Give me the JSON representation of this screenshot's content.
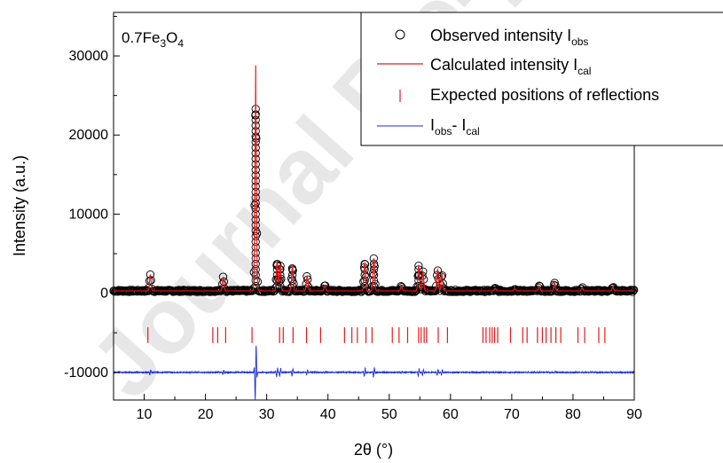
{
  "chart_data": {
    "type": "scatter",
    "sample_label": {
      "base": "0.7Fe",
      "sub1": "3",
      "mid": "O",
      "sub2": "4"
    },
    "xlabel": "2θ (°)",
    "ylabel": "Intensity (a.u.)",
    "xlim": [
      5,
      90
    ],
    "ylim": [
      -13500,
      35500
    ],
    "xticks": [
      10,
      20,
      30,
      40,
      50,
      60,
      70,
      80,
      90
    ],
    "yticks": [
      -10000,
      0,
      10000,
      20000,
      30000
    ],
    "xtick_labels": [
      "10",
      "20",
      "30",
      "40",
      "50",
      "60",
      "70",
      "80",
      "90"
    ],
    "ytick_labels": [
      "-10000",
      "0",
      "10000",
      "20000",
      "30000"
    ],
    "grid": false,
    "legend_placement": "top-right",
    "legend": [
      {
        "key": "obs",
        "text": "Observed intensity I",
        "sub": "obs"
      },
      {
        "key": "cal",
        "text": "Calculated intensity I",
        "sub": "cal"
      },
      {
        "key": "refl",
        "text": "Expected positions of reflections",
        "sub": ""
      },
      {
        "key": "diff",
        "text": "I",
        "sub": "obs",
        "text2": "- I",
        "sub2": "cal"
      }
    ],
    "colors": {
      "obs": "#000000",
      "cal": "#e8191b",
      "refl": "#e8191b",
      "diff": "#1f2fd6"
    },
    "baseline": 300,
    "diff_offset": -10000,
    "peaks": [
      {
        "x": 11.0,
        "y": 2300
      },
      {
        "x": 22.9,
        "y": 2000
      },
      {
        "x": 28.2,
        "y": 23600
      },
      {
        "x": 31.7,
        "y": 4000
      },
      {
        "x": 32.2,
        "y": 3600
      },
      {
        "x": 34.2,
        "y": 3400
      },
      {
        "x": 36.6,
        "y": 2100
      },
      {
        "x": 39.5,
        "y": 1000
      },
      {
        "x": 46.0,
        "y": 3800
      },
      {
        "x": 47.5,
        "y": 4400
      },
      {
        "x": 52.0,
        "y": 900
      },
      {
        "x": 54.8,
        "y": 3400
      },
      {
        "x": 55.5,
        "y": 2700
      },
      {
        "x": 57.9,
        "y": 3000
      },
      {
        "x": 58.6,
        "y": 2400
      },
      {
        "x": 67.3,
        "y": 600
      },
      {
        "x": 70.5,
        "y": 600
      },
      {
        "x": 74.5,
        "y": 900
      },
      {
        "x": 77.0,
        "y": 1300
      },
      {
        "x": 81.5,
        "y": 700
      },
      {
        "x": 86.5,
        "y": 800
      }
    ],
    "calculated_max": {
      "x": 28.2,
      "y": 28800
    },
    "reflection_y": [
      -6300,
      -4300
    ],
    "reflections": [
      10.6,
      21.2,
      22.0,
      23.3,
      27.6,
      32.1,
      32.7,
      34.3,
      36.5,
      38.8,
      42.7,
      43.9,
      44.8,
      46.2,
      47.2,
      50.5,
      51.6,
      53.0,
      54.8,
      55.2,
      55.7,
      56.1,
      58.0,
      59.5,
      65.3,
      65.8,
      66.4,
      66.8,
      67.2,
      67.7,
      69.8,
      71.8,
      72.5,
      74.2,
      75.0,
      75.6,
      76.4,
      77.2,
      78.0,
      80.8,
      81.9,
      84.2,
      85.2
    ]
  }
}
